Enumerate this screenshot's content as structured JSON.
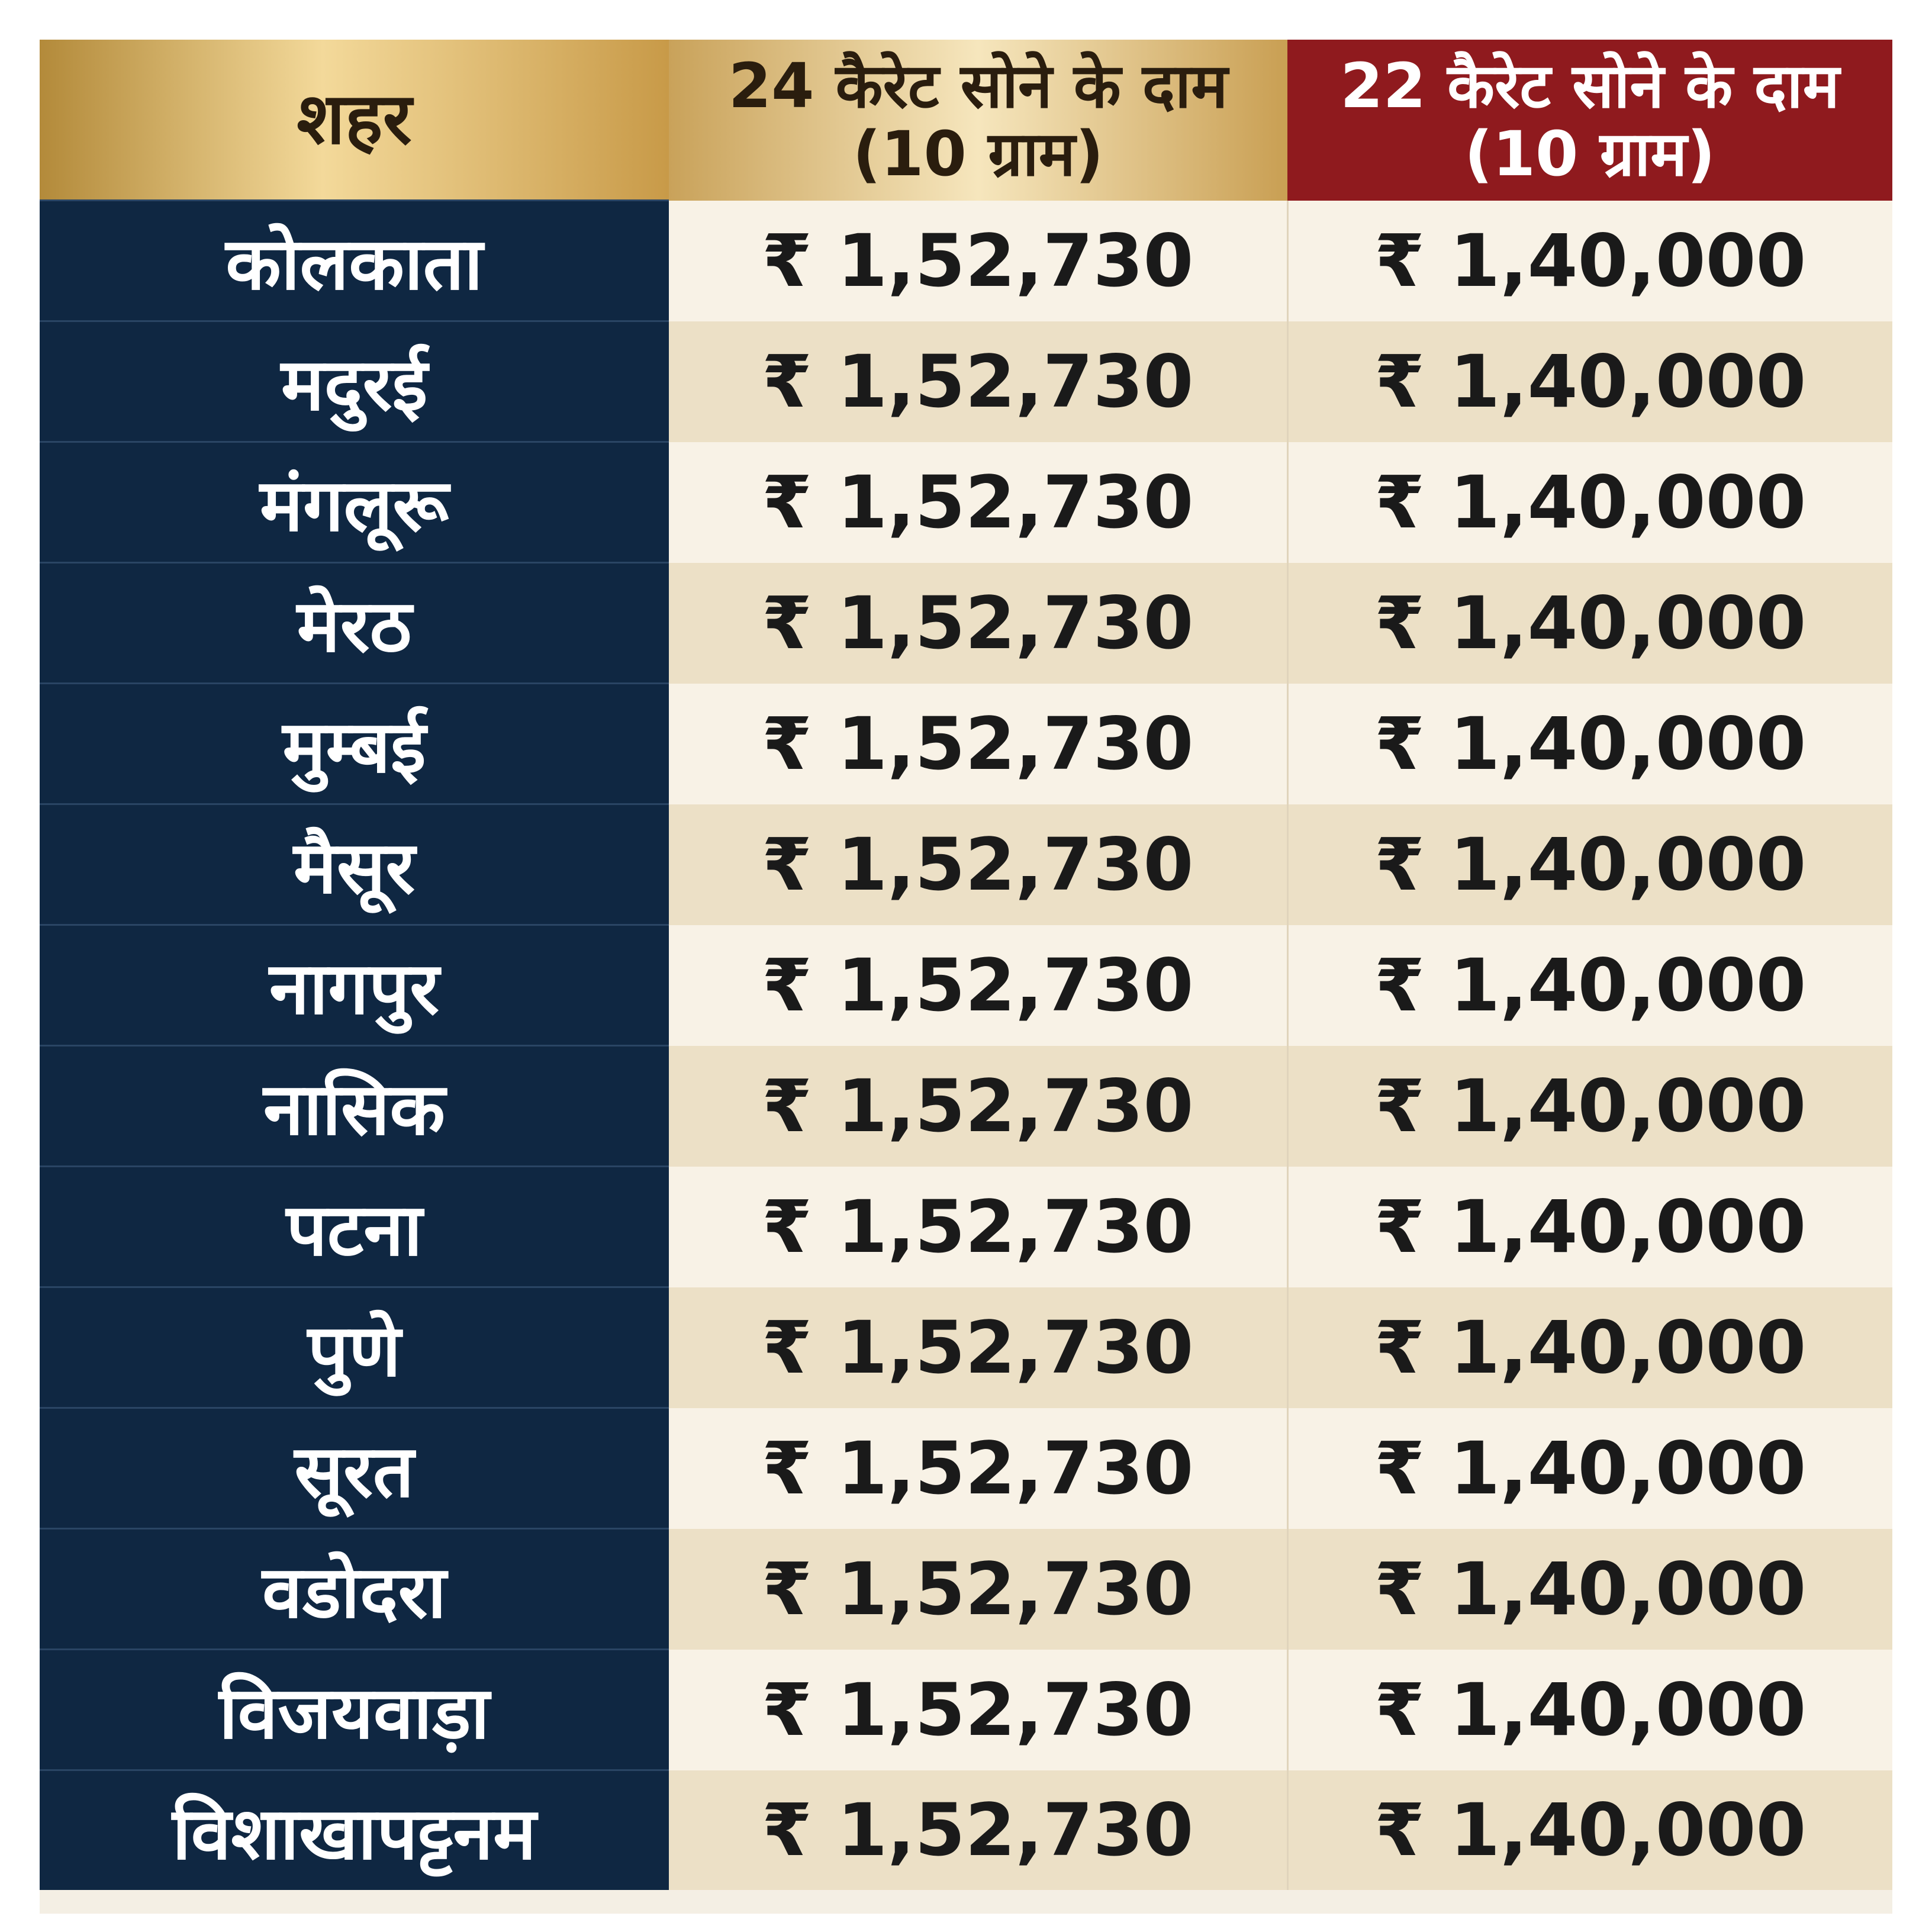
{
  "table": {
    "header": [
      "शहर",
      "24 कैरेट सोने के दाम (10 ग्राम)",
      "22 कैरेट सोने के दाम (10 ग्राम)"
    ],
    "rows": [
      [
        "कोलकाता",
        "₹ 1,52,730",
        "₹ 1,40,000"
      ],
      [
        "मदुरई",
        "₹ 1,52,730",
        "₹ 1,40,000"
      ],
      [
        "मंगलूरू",
        "₹ 1,52,730",
        "₹ 1,40,000"
      ],
      [
        "मेरठ",
        "₹ 1,52,730",
        "₹ 1,40,000"
      ],
      [
        "मुम्बई",
        "₹ 1,52,730",
        "₹ 1,40,000"
      ],
      [
        "मैसूर",
        "₹ 1,52,730",
        "₹ 1,40,000"
      ],
      [
        "नागपुर",
        "₹ 1,52,730",
        "₹ 1,40,000"
      ],
      [
        "नासिक",
        "₹ 1,52,730",
        "₹ 1,40,000"
      ],
      [
        "पटना",
        "₹ 1,52,730",
        "₹ 1,40,000"
      ],
      [
        "पुणे",
        "₹ 1,52,730",
        "₹ 1,40,000"
      ],
      [
        "सूरत",
        "₹ 1,52,730",
        "₹ 1,40,000"
      ],
      [
        "वडोदरा",
        "₹ 1,52,730",
        "₹ 1,40,000"
      ],
      [
        "विजयवाड़ा",
        "₹ 1,52,730",
        "₹ 1,40,000"
      ],
      [
        "विशाखापट्टनम",
        "₹ 1,52,730",
        "₹ 1,40,000"
      ]
    ]
  }
}
